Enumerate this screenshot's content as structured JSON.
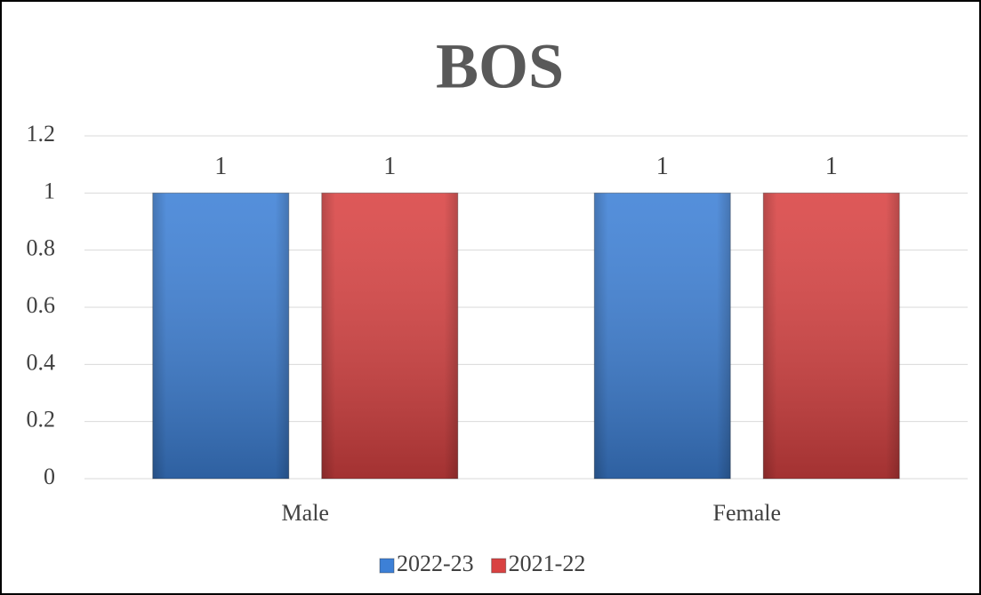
{
  "chart_data": {
    "type": "bar",
    "title": "BOS",
    "categories": [
      "Male",
      "Female"
    ],
    "series": [
      {
        "name": "2022-23",
        "color": "#3d80d6",
        "values": [
          1,
          1
        ]
      },
      {
        "name": "2021-22",
        "color": "#d94242",
        "values": [
          1,
          1
        ]
      }
    ],
    "ylim": [
      0,
      1.2
    ],
    "yticks": [
      0,
      0.2,
      0.4,
      0.6,
      0.8,
      1,
      1.2
    ],
    "grid": true,
    "legend": "bottom"
  }
}
